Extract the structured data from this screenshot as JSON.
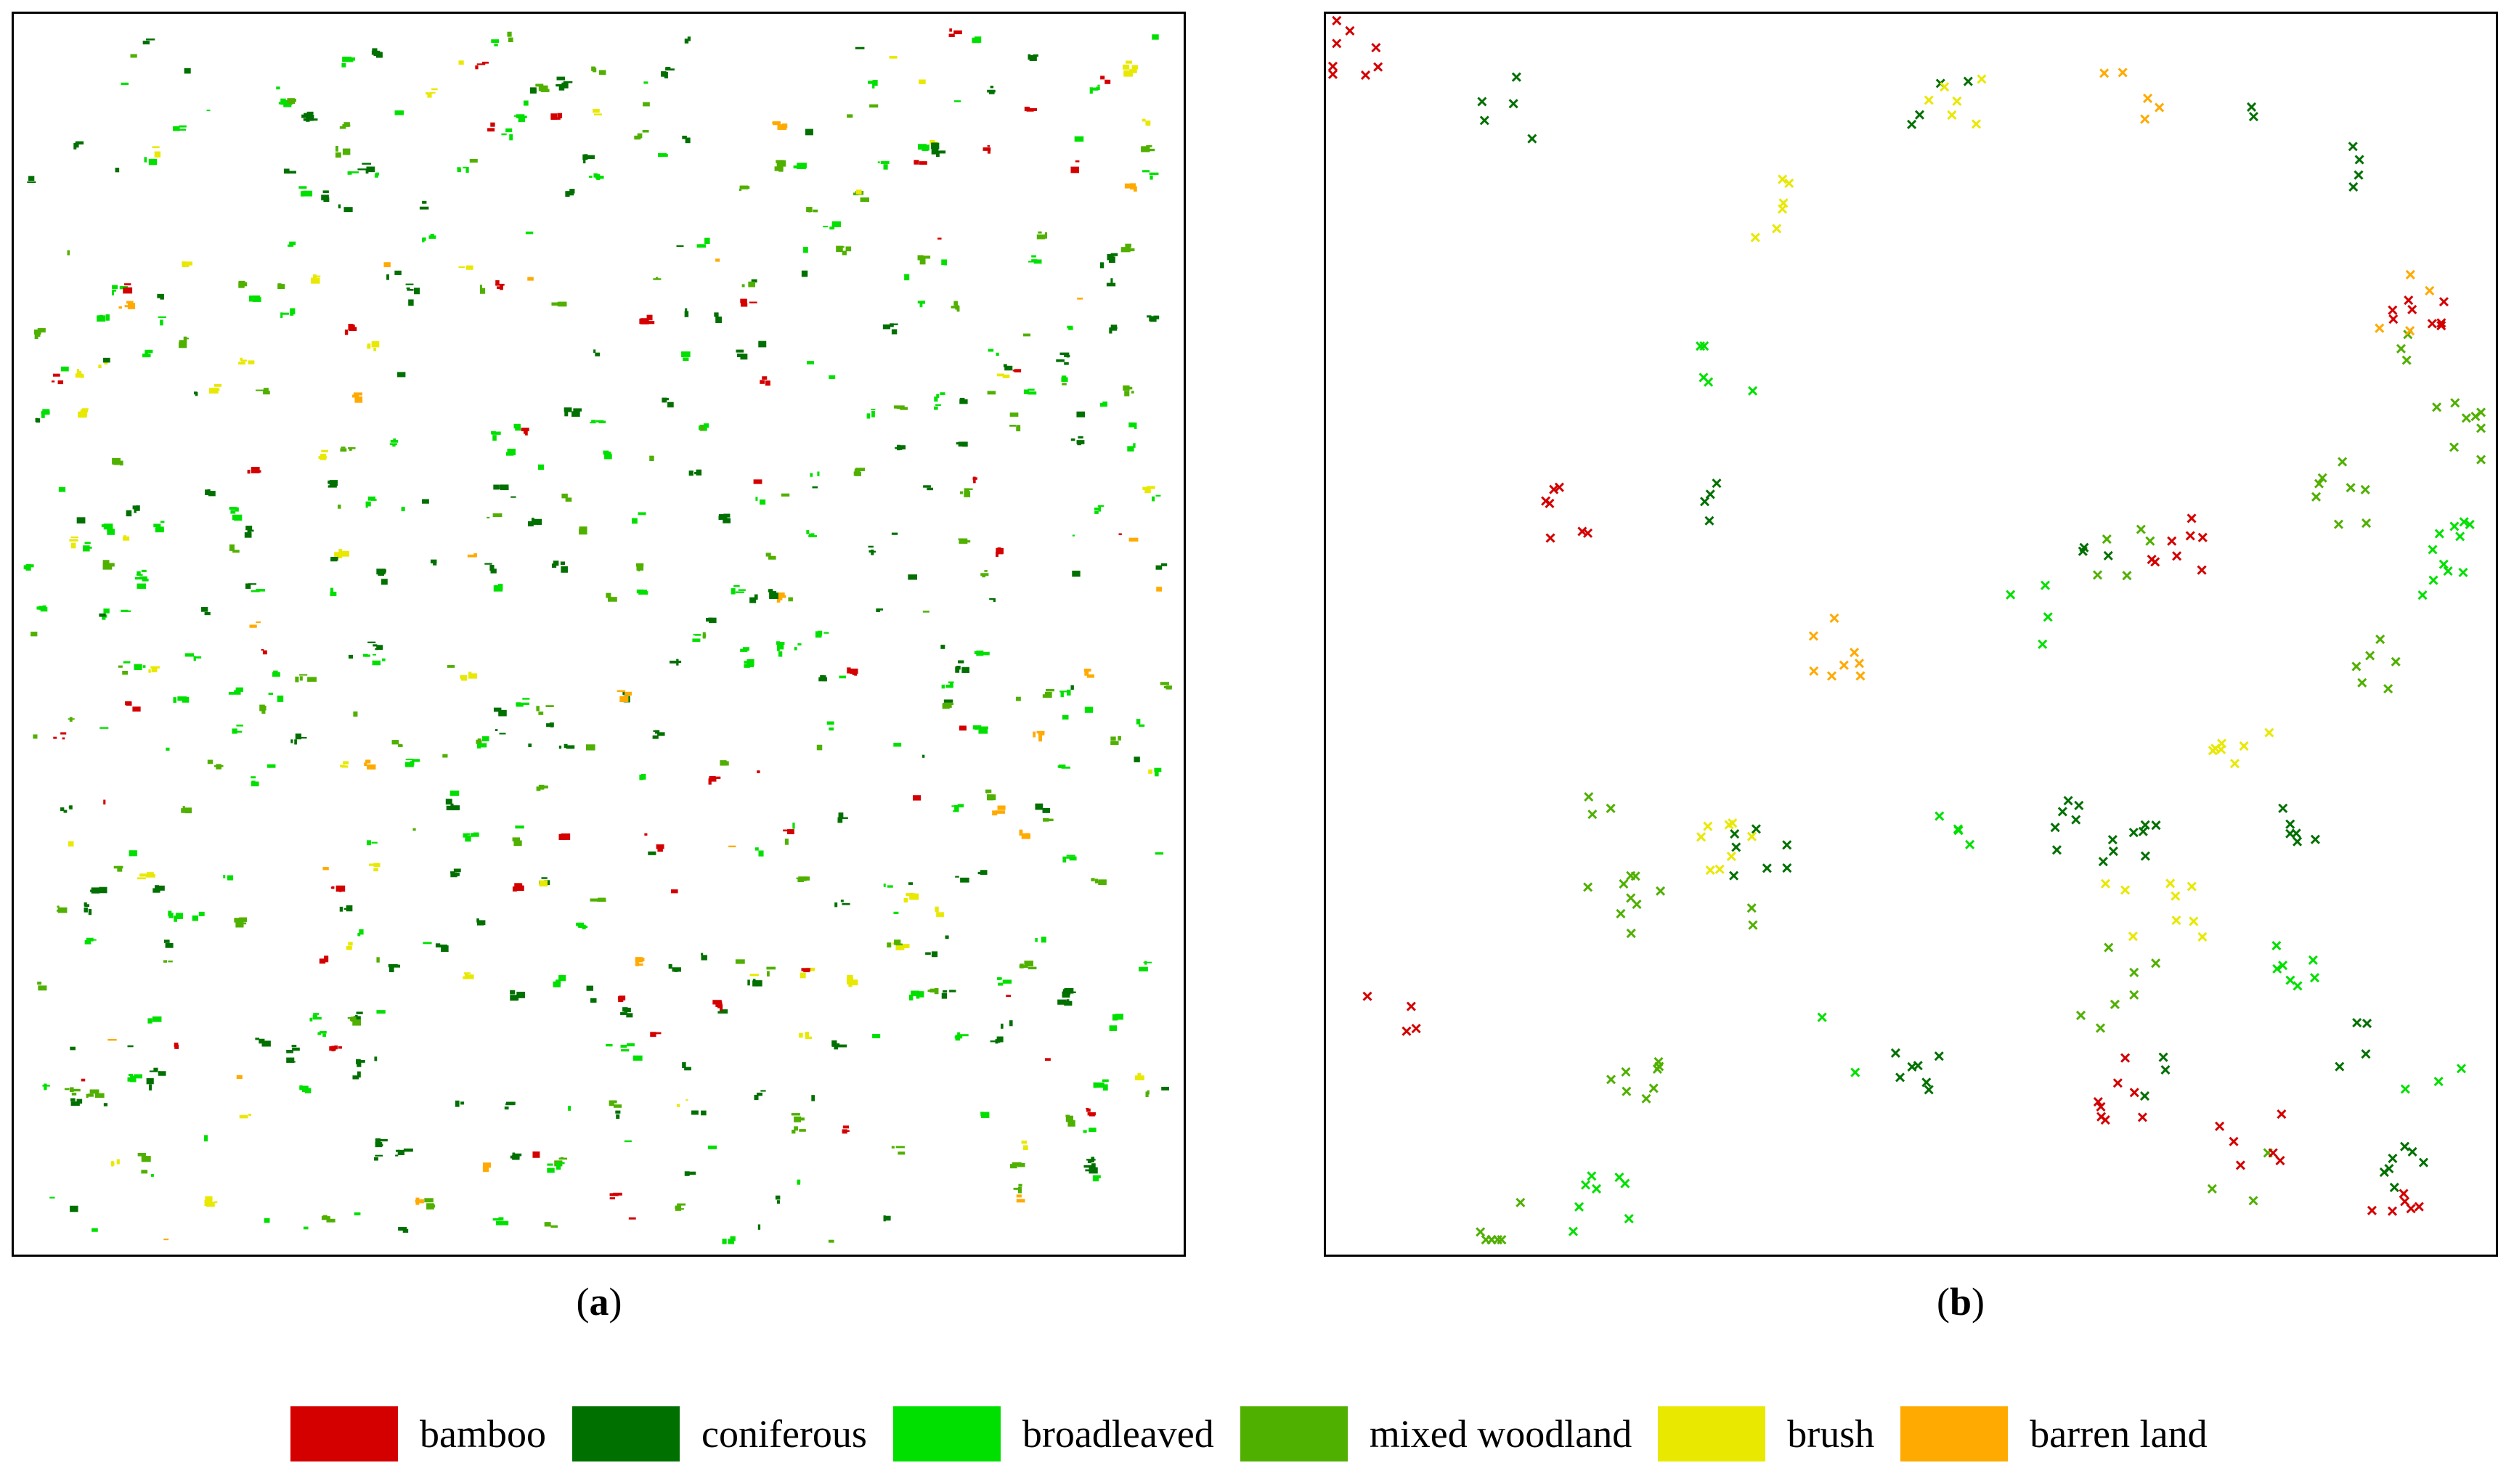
{
  "colors": {
    "bamboo": "#d40000",
    "coniferous": "#007000",
    "broadleaved": "#00e000",
    "mixed": "#50b000",
    "brush": "#e8e800",
    "barren": "#ffaa00"
  },
  "panels": [
    {
      "id": "a",
      "caption_paren_open": "(",
      "caption_letter": "a",
      "caption_paren_close": ")"
    },
    {
      "id": "b",
      "caption_paren_open": "(",
      "caption_letter": "b",
      "caption_paren_close": ")"
    }
  ],
  "legend": [
    {
      "key": "bamboo",
      "label": "bamboo"
    },
    {
      "key": "coniferous",
      "label": "coniferous"
    },
    {
      "key": "broadleaved",
      "label": "broadleaved"
    },
    {
      "key": "mixed",
      "label": "mixed woodland"
    },
    {
      "key": "brush",
      "label": "brush"
    },
    {
      "key": "barren",
      "label": "barren land"
    }
  ]
}
